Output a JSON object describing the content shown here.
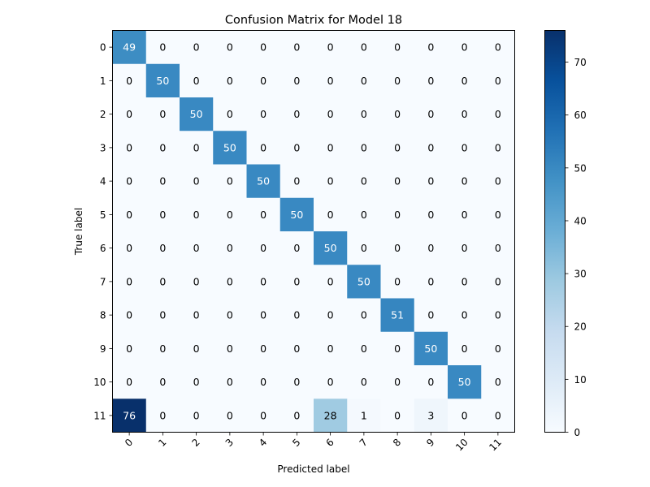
{
  "chart_data": {
    "type": "heatmap",
    "title": "Confusion Matrix for Model 18",
    "xlabel": "Predicted label",
    "ylabel": "True label",
    "x_categories": [
      "0",
      "1",
      "2",
      "3",
      "4",
      "5",
      "6",
      "7",
      "8",
      "9",
      "10",
      "11"
    ],
    "y_categories": [
      "0",
      "1",
      "2",
      "3",
      "4",
      "5",
      "6",
      "7",
      "8",
      "9",
      "10",
      "11"
    ],
    "values": [
      [
        49,
        0,
        0,
        0,
        0,
        0,
        0,
        0,
        0,
        0,
        0,
        0
      ],
      [
        0,
        50,
        0,
        0,
        0,
        0,
        0,
        0,
        0,
        0,
        0,
        0
      ],
      [
        0,
        0,
        50,
        0,
        0,
        0,
        0,
        0,
        0,
        0,
        0,
        0
      ],
      [
        0,
        0,
        0,
        50,
        0,
        0,
        0,
        0,
        0,
        0,
        0,
        0
      ],
      [
        0,
        0,
        0,
        0,
        50,
        0,
        0,
        0,
        0,
        0,
        0,
        0
      ],
      [
        0,
        0,
        0,
        0,
        0,
        50,
        0,
        0,
        0,
        0,
        0,
        0
      ],
      [
        0,
        0,
        0,
        0,
        0,
        0,
        50,
        0,
        0,
        0,
        0,
        0
      ],
      [
        0,
        0,
        0,
        0,
        0,
        0,
        0,
        50,
        0,
        0,
        0,
        0
      ],
      [
        0,
        0,
        0,
        0,
        0,
        0,
        0,
        0,
        51,
        0,
        0,
        0
      ],
      [
        0,
        0,
        0,
        0,
        0,
        0,
        0,
        0,
        0,
        50,
        0,
        0
      ],
      [
        0,
        0,
        0,
        0,
        0,
        0,
        0,
        0,
        0,
        0,
        50,
        0
      ],
      [
        76,
        0,
        0,
        0,
        0,
        0,
        28,
        1,
        0,
        3,
        0,
        0
      ]
    ],
    "colormap": "Blues",
    "color_range": [
      0,
      76
    ],
    "colorbar_ticks": [
      0,
      10,
      20,
      30,
      40,
      50,
      60,
      70
    ],
    "x_tick_rotation_deg": 45,
    "grid": false
  }
}
